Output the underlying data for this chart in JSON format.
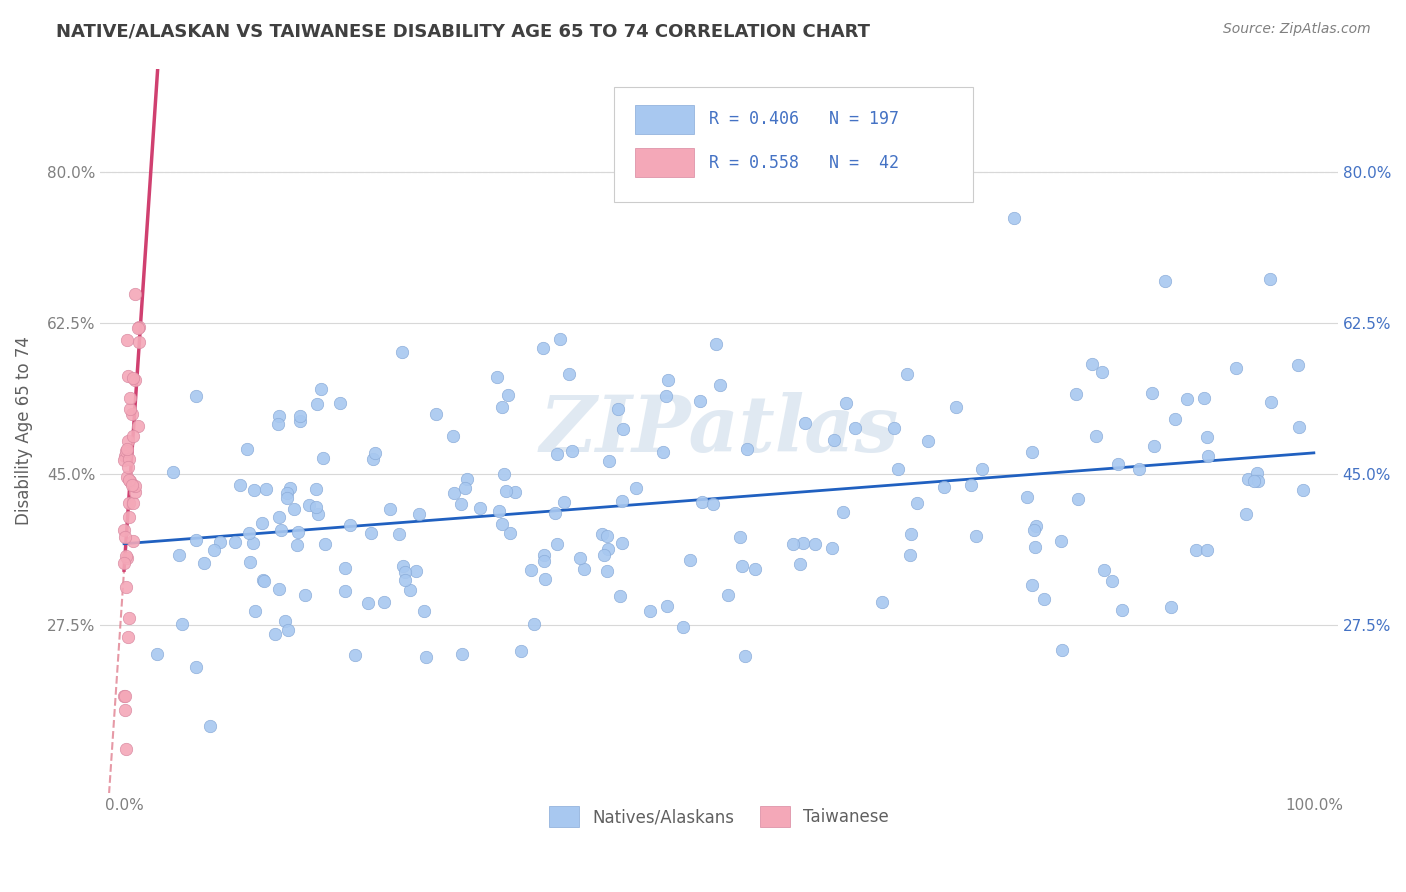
{
  "title": "NATIVE/ALASKAN VS TAIWANESE DISABILITY AGE 65 TO 74 CORRELATION CHART",
  "source": "Source: ZipAtlas.com",
  "ylabel": "Disability Age 65 to 74",
  "xlim": [
    -0.02,
    1.02
  ],
  "ylim": [
    0.08,
    0.92
  ],
  "x_ticks": [
    0.0,
    1.0
  ],
  "x_tick_labels": [
    "0.0%",
    "100.0%"
  ],
  "y_ticks": [
    0.275,
    0.45,
    0.625,
    0.8
  ],
  "y_tick_labels": [
    "27.5%",
    "45.0%",
    "62.5%",
    "80.0%"
  ],
  "blue_R": 0.406,
  "blue_N": 197,
  "pink_R": 0.558,
  "pink_N": 42,
  "blue_color": "#a8c8f0",
  "pink_color": "#f4a8b8",
  "blue_line_color": "#2060c0",
  "pink_line_color": "#d04070",
  "pink_dashed_color": "#e08090",
  "legend_blue_label": "Natives/Alaskans",
  "legend_pink_label": "Taiwanese",
  "watermark": "ZIPatlas",
  "background_color": "#ffffff",
  "grid_color": "#d8d8d8",
  "title_color": "#404040",
  "axis_label_color": "#606060",
  "blue_seed": 42,
  "pink_seed": 7
}
